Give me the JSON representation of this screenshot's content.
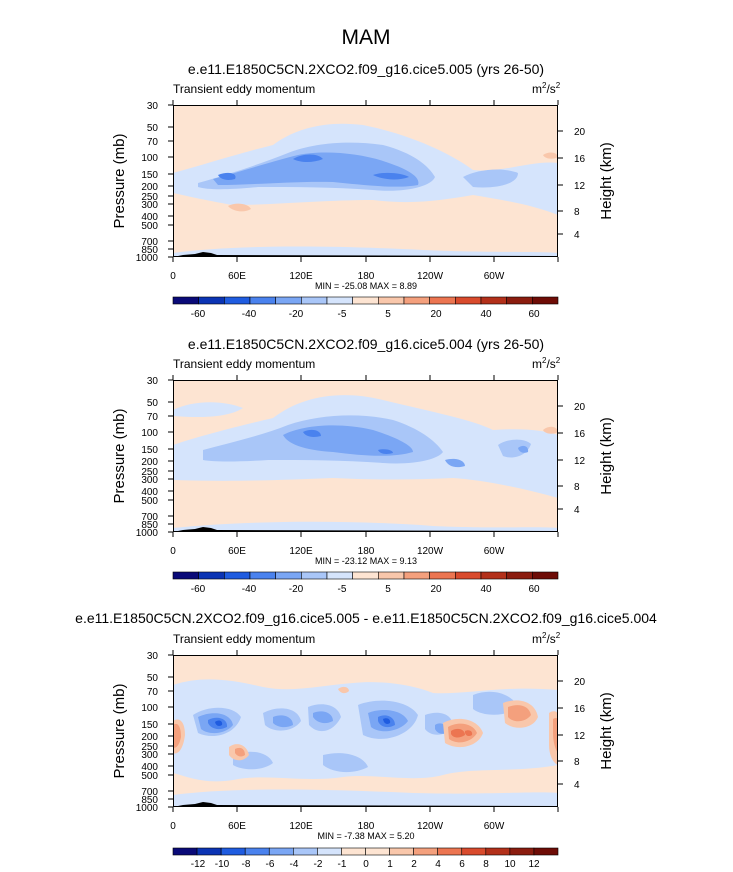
{
  "figure": {
    "title": "MAM",
    "units_base": "m",
    "units_sup1": "2",
    "units_mid": "/s",
    "units_sup2": "2"
  },
  "chart_data": [
    {
      "type": "heatmap",
      "title": "e.e11.E1850C5CN.2XCO2.f09_g16.cice5.005 (yrs 26-50)",
      "subtitle": "Transient eddy momentum",
      "xlabel": "",
      "ylabel": "Pressure (mb)",
      "ylabel_right": "Height (km)",
      "x_tick_labels": [
        "0",
        "60E",
        "120E",
        "180",
        "120W",
        "60W"
      ],
      "y_tick_labels": [
        "30",
        "50",
        "70",
        "100",
        "150",
        "200",
        "250",
        "300",
        "400",
        "500",
        "700",
        "850",
        "1000"
      ],
      "y2_tick_labels": [
        "20",
        "16",
        "12",
        "8",
        "4"
      ],
      "stats": "MIN = -25.08   MAX =   8.89",
      "colorbar_levels": [
        "-60",
        "-40",
        "-20",
        "-5",
        "5",
        "20",
        "40",
        "60"
      ],
      "ylim": [
        1000,
        30
      ]
    },
    {
      "type": "heatmap",
      "title": "e.e11.E1850C5CN.2XCO2.f09_g16.cice5.004 (yrs 26-50)",
      "subtitle": "Transient eddy momentum",
      "xlabel": "",
      "ylabel": "Pressure (mb)",
      "ylabel_right": "Height (km)",
      "x_tick_labels": [
        "0",
        "60E",
        "120E",
        "180",
        "120W",
        "60W"
      ],
      "y_tick_labels": [
        "30",
        "50",
        "70",
        "100",
        "150",
        "200",
        "250",
        "300",
        "400",
        "500",
        "700",
        "850",
        "1000"
      ],
      "y2_tick_labels": [
        "20",
        "16",
        "12",
        "8",
        "4"
      ],
      "stats": "MIN = -23.12   MAX =   9.13",
      "colorbar_levels": [
        "-60",
        "-40",
        "-20",
        "-5",
        "5",
        "20",
        "40",
        "60"
      ],
      "ylim": [
        1000,
        30
      ]
    },
    {
      "type": "heatmap",
      "title": "e.e11.E1850C5CN.2XCO2.f09_g16.cice5.005 - e.e11.E1850C5CN.2XCO2.f09_g16.cice5.004",
      "subtitle": "Transient eddy momentum",
      "xlabel": "",
      "ylabel": "Pressure (mb)",
      "ylabel_right": "Height (km)",
      "x_tick_labels": [
        "0",
        "60E",
        "120E",
        "180",
        "120W",
        "60W"
      ],
      "y_tick_labels": [
        "30",
        "50",
        "70",
        "100",
        "150",
        "200",
        "250",
        "300",
        "400",
        "500",
        "700",
        "850",
        "1000"
      ],
      "y2_tick_labels": [
        "20",
        "16",
        "12",
        "8",
        "4"
      ],
      "stats": "MIN = -7.38   MAX =   5.20",
      "colorbar_levels": [
        "-12",
        "-10",
        "-8",
        "-6",
        "-4",
        "-2",
        "-1",
        "0",
        "1",
        "2",
        "4",
        "6",
        "8",
        "10",
        "12"
      ],
      "ylim": [
        1000,
        30
      ]
    }
  ],
  "colors": {
    "colormap": [
      "#0a0a78",
      "#0b34b4",
      "#1f5ce0",
      "#4a82ee",
      "#7aa6f4",
      "#a9c6f8",
      "#d5e4fc",
      "#fde4d2",
      "#f9c7ab",
      "#f4a07d",
      "#ec7551",
      "#d94b2d",
      "#b3301a",
      "#8b1c0f",
      "#6e0c06"
    ],
    "pos_light": "#fde4d2",
    "neg_light": "#d5e4fc"
  }
}
